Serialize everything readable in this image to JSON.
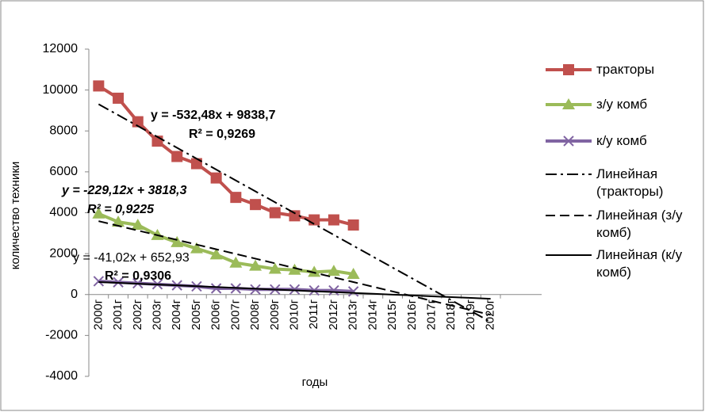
{
  "chart_data": {
    "type": "line",
    "x_label": "годы",
    "y_label": "количество техники",
    "categories": [
      "2000г",
      "2001г",
      "2002г",
      "2003г",
      "2004г",
      "2005г",
      "2006г",
      "2007г",
      "2008г",
      "2009г",
      "2010г",
      "2011г",
      "2012г",
      "2013г",
      "2014г",
      "2015г",
      "2016г",
      "2017г",
      "2018г",
      "2019г",
      "2020г"
    ],
    "ylim": [
      -4000,
      12000
    ],
    "yticks": [
      -4000,
      -2000,
      0,
      2000,
      4000,
      6000,
      8000,
      10000,
      12000
    ],
    "series": [
      {
        "name": "тракторы",
        "color": "#c0504d",
        "marker": "square",
        "values": [
          10200,
          9600,
          8450,
          7500,
          6750,
          6400,
          5700,
          4750,
          4400,
          4000,
          3850,
          3650,
          3650,
          3400,
          null,
          null,
          null,
          null,
          null,
          null,
          null
        ]
      },
      {
        "name": "з/у комб",
        "color": "#9bbb59",
        "marker": "triangle",
        "values": [
          3950,
          3550,
          3400,
          2900,
          2550,
          2250,
          1950,
          1550,
          1400,
          1250,
          1200,
          1100,
          1150,
          1000,
          null,
          null,
          null,
          null,
          null,
          null,
          null
        ]
      },
      {
        "name": "к/у комб",
        "color": "#8064a2",
        "marker": "x",
        "values": [
          650,
          600,
          550,
          500,
          450,
          400,
          300,
          300,
          250,
          250,
          250,
          200,
          200,
          150,
          null,
          null,
          null,
          null,
          null,
          null,
          null
        ]
      },
      {
        "name": "Линейная (тракторы)",
        "color": "#000000",
        "style": "dash-dot",
        "values": [
          9306,
          8774,
          8241,
          7709,
          7176,
          6644,
          6111,
          5579,
          5046,
          4514,
          3981,
          3449,
          2917,
          2384,
          1852,
          1319,
          787,
          254,
          -278,
          -811,
          -1343
        ]
      },
      {
        "name": "Линейная (з/у комб)",
        "color": "#000000",
        "style": "dash",
        "values": [
          3589,
          3360,
          3131,
          2902,
          2673,
          2444,
          2214,
          1985,
          1756,
          1527,
          1298,
          1069,
          840,
          611,
          381,
          152,
          -77,
          -306,
          -535,
          -764,
          -993
        ]
      },
      {
        "name": "Линейная (к/у комб)",
        "color": "#000000",
        "style": "solid",
        "values": [
          612,
          571,
          530,
          489,
          448,
          407,
          366,
          325,
          284,
          243,
          202,
          161,
          120,
          79,
          38,
          -3,
          -44,
          -85,
          -126,
          -167,
          -208
        ]
      }
    ],
    "annotations": [
      "y = -532,48x + 9838,7",
      "R² = 0,9269",
      "y = -229,12x + 3818,3",
      "R² = 0,9225",
      "y = -41,02x + 652,93",
      "R² = 0,9306"
    ]
  }
}
